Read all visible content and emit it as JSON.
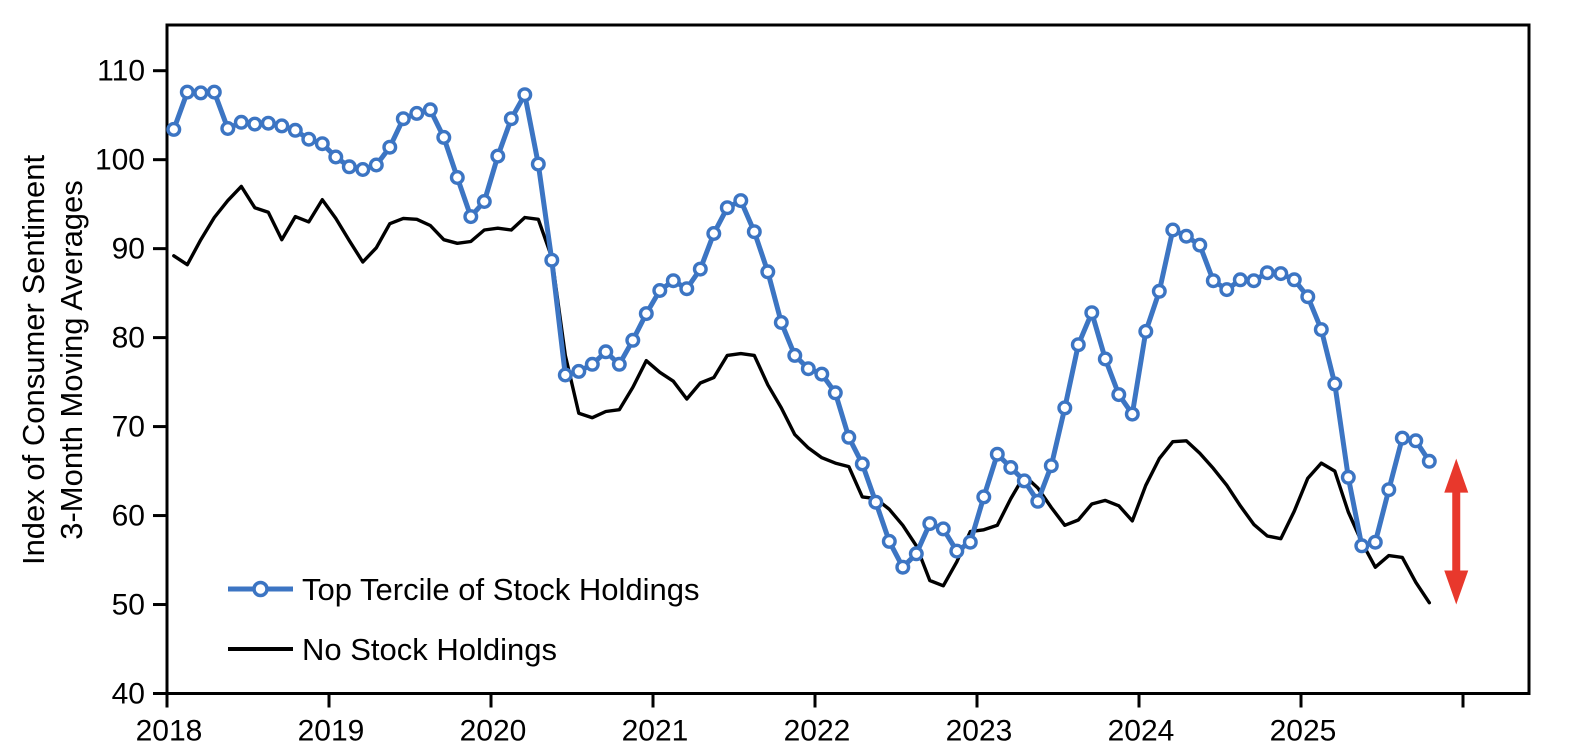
{
  "colors": {
    "accent_blue": "#3C75C3",
    "series_black": "#000000",
    "arrow_red": "#E8382C",
    "background": "#FFFFFF",
    "axis": "#000000"
  },
  "axis_titles": {
    "y_line1": "Index of Consumer Sentiment",
    "y_line2": "3-Month Moving Averages"
  },
  "legend": {
    "items": [
      {
        "label": "Top Tercile of Stock Holdings",
        "color": "#3C75C3",
        "marker": "open-circle"
      },
      {
        "label": "No Stock Holdings",
        "color": "#000000",
        "marker": "none"
      }
    ]
  },
  "chart_data": {
    "type": "line",
    "title": "",
    "xlabel": "",
    "ylabel": "Index of Consumer Sentiment 3-Month Moving Averages",
    "x_start": "2018-01",
    "x_frequency": "monthly",
    "x_tick_labels": [
      "2018",
      "2019",
      "2020",
      "2021",
      "2022",
      "2023",
      "2024",
      "2025"
    ],
    "x_extra_unlabeled_tick": "2026",
    "ylim": [
      40,
      115
    ],
    "y_ticks": [
      40,
      50,
      60,
      70,
      80,
      90,
      100,
      110
    ],
    "grid": false,
    "legend_position": "inside-lower-left",
    "series": [
      {
        "name": "Top Tercile of Stock Holdings",
        "color": "#3C75C3",
        "marker": "open-circle",
        "values": [
          103.4,
          107.6,
          107.5,
          107.6,
          103.5,
          104.2,
          104.0,
          104.1,
          103.8,
          103.3,
          102.3,
          101.8,
          100.3,
          99.2,
          98.9,
          99.4,
          101.4,
          104.6,
          105.2,
          105.6,
          102.5,
          98.0,
          93.6,
          95.3,
          100.4,
          104.6,
          107.3,
          99.5,
          88.7,
          75.8,
          76.2,
          77.0,
          78.4,
          77.0,
          79.7,
          82.7,
          85.3,
          86.4,
          85.5,
          87.7,
          91.7,
          94.6,
          95.4,
          91.9,
          87.4,
          81.7,
          78.0,
          76.5,
          75.9,
          73.8,
          68.8,
          65.8,
          61.5,
          57.1,
          54.2,
          55.7,
          59.1,
          58.5,
          56.0,
          57.0,
          62.1,
          66.9,
          65.4,
          63.9,
          61.6,
          65.6,
          72.1,
          79.2,
          82.8,
          77.6,
          73.6,
          71.4,
          80.7,
          85.2,
          92.1,
          91.4,
          90.4,
          86.4,
          85.4,
          86.5,
          86.4,
          87.3,
          87.2,
          86.5,
          84.6,
          80.9,
          74.8,
          64.3,
          56.6,
          57.0,
          62.9,
          68.7,
          68.4,
          66.1
        ]
      },
      {
        "name": "No Stock Holdings",
        "color": "#000000",
        "marker": "none",
        "values": [
          89.2,
          88.2,
          91.0,
          93.5,
          95.4,
          97.0,
          94.6,
          94.1,
          91.0,
          93.6,
          93.0,
          95.5,
          93.4,
          90.9,
          88.5,
          90.1,
          92.8,
          93.4,
          93.3,
          92.6,
          91.0,
          90.6,
          90.8,
          92.1,
          92.3,
          92.1,
          93.5,
          93.3,
          89.0,
          78.0,
          71.5,
          71.0,
          71.7,
          71.9,
          74.4,
          77.4,
          76.1,
          75.1,
          73.1,
          74.9,
          75.5,
          78.0,
          78.2,
          78.0,
          74.7,
          72.1,
          69.1,
          67.6,
          66.5,
          65.9,
          65.5,
          62.1,
          61.9,
          60.7,
          58.9,
          56.6,
          52.7,
          52.1,
          54.8,
          58.2,
          58.4,
          58.9,
          61.9,
          64.5,
          63.1,
          60.9,
          58.9,
          59.5,
          61.3,
          61.7,
          61.1,
          59.4,
          63.4,
          66.4,
          68.3,
          68.4,
          67.0,
          65.3,
          63.4,
          61.1,
          59.0,
          57.7,
          57.4,
          60.5,
          64.2,
          65.9,
          65.0,
          60.4,
          57.0,
          54.2,
          55.5,
          55.3,
          52.5,
          50.2
        ]
      }
    ],
    "annotation": {
      "type": "vertical-double-arrow",
      "color": "#E8382C",
      "value_top": 66.4,
      "value_bottom": 50.0,
      "x_months_after_last_point": 2,
      "meaning": "gap between Top Tercile of Stock Holdings and No Stock Holdings at end of series"
    }
  }
}
